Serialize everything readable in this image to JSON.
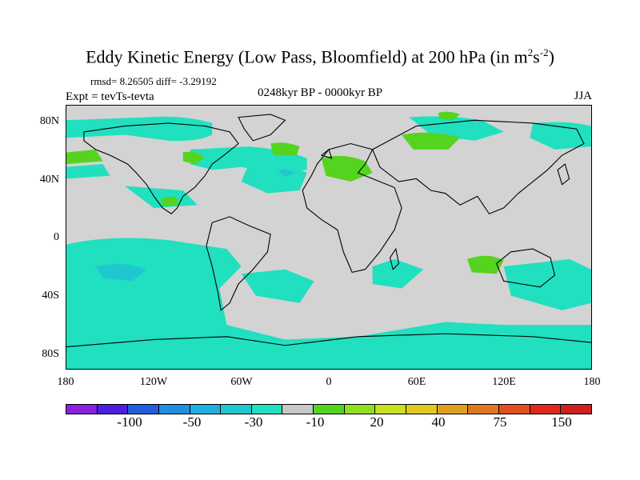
{
  "figure": {
    "title_main": "Eddy Kinetic Energy (Low Pass, Bloomfield) at 200 hPa (in m",
    "title_sup1": "2",
    "title_mid": "s",
    "title_sup2": "-2",
    "title_end": ")",
    "stats": "rmsd= 8.26505 diff= -3.29192",
    "expt": "Expt = tevTs-tevta",
    "period": "0248kyr BP - 0000kyr BP",
    "season": "JJA"
  },
  "map": {
    "type": "world map, cylindrical equidistant, 180W–180E, 90S–90N",
    "land_color": "#d3d3d3",
    "coast_color": "#000000",
    "lat_labels": [
      "80N",
      "40N",
      "0",
      "40S",
      "80S"
    ],
    "lon_labels": [
      "180",
      "120W",
      "60W",
      "0",
      "60E",
      "120E",
      "180"
    ],
    "shaded_regions_description": "Negative anomalies (-10 to -30) cover much of the Southern Ocean, South Pacific, North Atlantic storm track and Arctic rim; positive anomalies (10 to 20) over the Mediterranean/Europe, northern Eurasia, south Indian Ocean west of Australia, and mid North Atlantic."
  },
  "legend": {
    "colors": [
      "#8a1fe0",
      "#4b1fe0",
      "#1f5fe0",
      "#1f8fe0",
      "#1fb0e0",
      "#1fc8d0",
      "#20e0c0",
      "#c8c8c8",
      "#55d41f",
      "#8fe01f",
      "#c8e01f",
      "#e0c81f",
      "#e0a01f",
      "#e0781f",
      "#e0501f",
      "#e0281f",
      "#d01f1f"
    ],
    "labels": [
      "-100",
      "-50",
      "-30",
      "-10",
      "20",
      "40",
      "75",
      "150"
    ]
  }
}
